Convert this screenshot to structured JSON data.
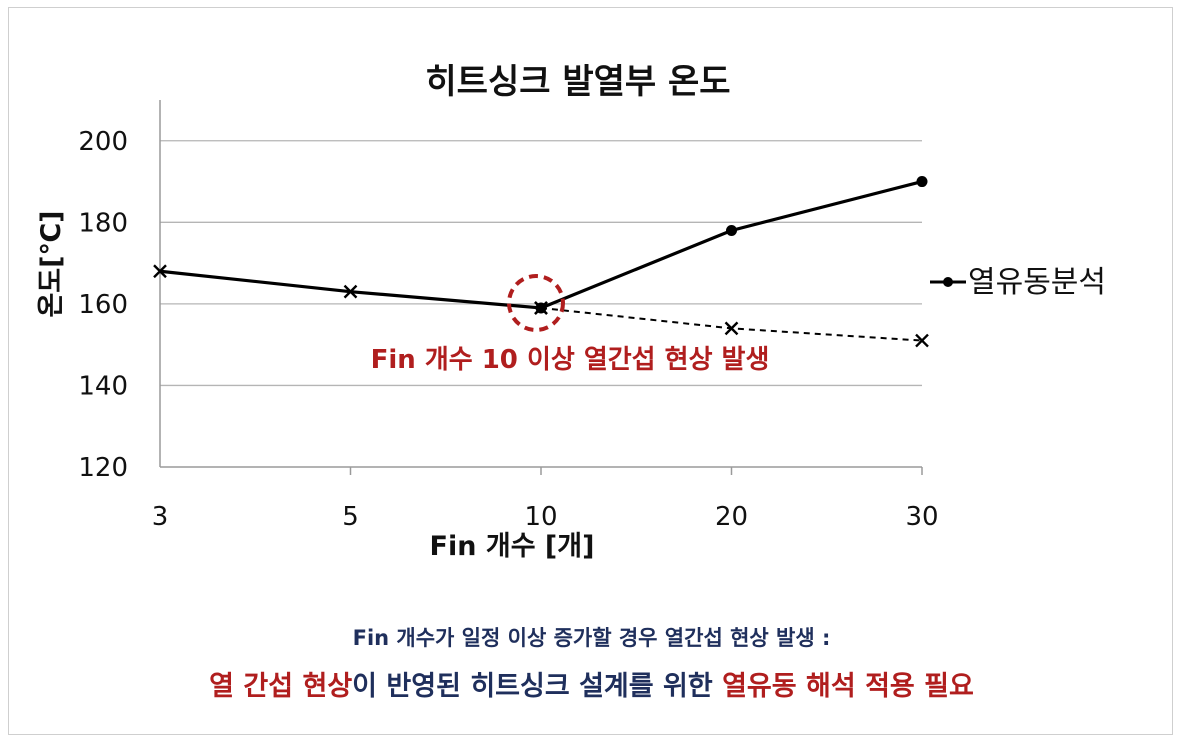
{
  "chart_data": {
    "type": "line",
    "title": "히트싱크 발열부 온도",
    "xlabel": "Fin 개수 [개]",
    "ylabel": "온도[℃]",
    "categories": [
      "3",
      "5",
      "10",
      "20",
      "30"
    ],
    "ylim": [
      120,
      210
    ],
    "yticks": [
      120,
      140,
      160,
      180,
      200
    ],
    "grid": "horizontal",
    "legend_position": "right",
    "series": [
      {
        "name": "열유동분석",
        "style": "solid",
        "marker": "circle",
        "values": [
          null,
          null,
          159,
          178,
          190
        ]
      },
      {
        "name": "",
        "style": "solid",
        "marker": "x",
        "values": [
          168,
          163,
          159,
          null,
          null
        ]
      },
      {
        "name": "",
        "style": "dashed",
        "marker": "x",
        "values": [
          null,
          null,
          159,
          154,
          151
        ]
      }
    ],
    "annotation": {
      "text": "Fin 개수 10 이상 열간섭 현상 발생",
      "category": "10",
      "value": 159,
      "color": "#b01e1e"
    }
  },
  "notes": {
    "line1": "Fin 개수가 일정 이상 증가할 경우 열간섭 현상 발생 :",
    "line2_red_a": "열 간섭 현상",
    "line2_navy": "이 반영된 히트싱크 설계를 위한 ",
    "line2_red_b": "열유동 해석 적용 필요"
  },
  "colors": {
    "line": "#000000",
    "grid": "#b5b5b5",
    "accent": "#b01e1e",
    "note": "#1f2f5c"
  }
}
